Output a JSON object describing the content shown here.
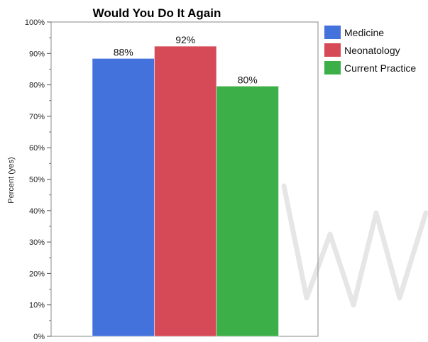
{
  "chart_data": {
    "type": "bar",
    "title": "Would You Do It Again",
    "xlabel": "",
    "ylabel": "Percent (yes)",
    "ylim": [
      0,
      100
    ],
    "yticks": [
      {
        "value": 0,
        "label": "0%"
      },
      {
        "value": 10,
        "label": "10%"
      },
      {
        "value": 20,
        "label": "20%"
      },
      {
        "value": 30,
        "label": "30%"
      },
      {
        "value": 40,
        "label": "40%"
      },
      {
        "value": 50,
        "label": "50%"
      },
      {
        "value": 60,
        "label": "60%"
      },
      {
        "value": 70,
        "label": "70%"
      },
      {
        "value": 80,
        "label": "80%"
      },
      {
        "value": 90,
        "label": "90%"
      },
      {
        "value": 100,
        "label": "100%"
      }
    ],
    "grid": false,
    "legend_position": "right",
    "series": [
      {
        "name": "Medicine",
        "value": 88.4,
        "label": "88%",
        "color": "#4472dc"
      },
      {
        "name": "Neonatology",
        "value": 92.3,
        "label": "92%",
        "color": "#d64a58"
      },
      {
        "name": "Current Practice",
        "value": 79.6,
        "label": "80%",
        "color": "#3daf48"
      }
    ]
  }
}
